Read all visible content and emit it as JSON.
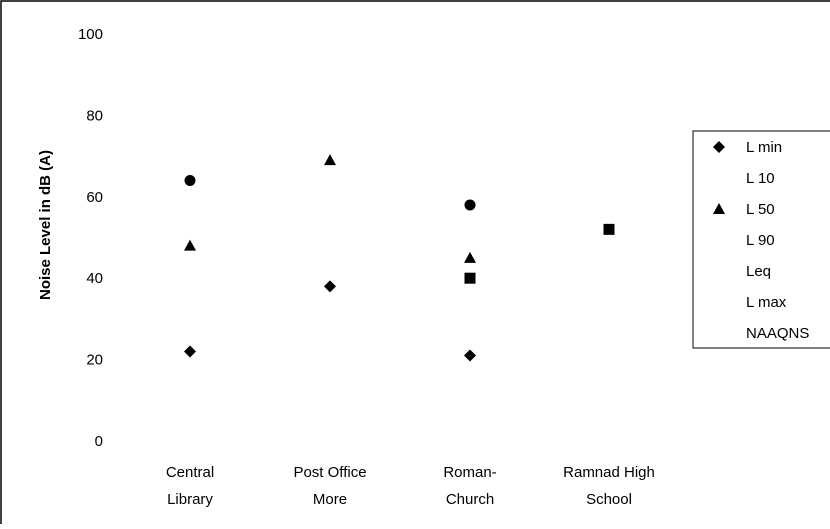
{
  "chart_data": {
    "type": "scatter",
    "title": "",
    "xlabel": "",
    "ylabel": "Noise Level in dB (A)",
    "ylim": [
      0,
      100
    ],
    "yticks": [
      0,
      20,
      40,
      60,
      80,
      100
    ],
    "categories": [
      [
        "Central",
        "Library"
      ],
      [
        "Post Office",
        "More"
      ],
      [
        "Roman-",
        "Church"
      ],
      [
        "Ramnad  High",
        "School"
      ]
    ],
    "grid": false,
    "legend_position": "right",
    "series": [
      {
        "name": "L min",
        "marker": "diamond",
        "values": [
          22,
          38,
          21,
          null
        ]
      },
      {
        "name": "L 10",
        "marker": "none",
        "values": [
          null,
          null,
          null,
          null
        ]
      },
      {
        "name": "L 50",
        "marker": "triangle",
        "values": [
          48,
          69,
          45,
          null
        ]
      },
      {
        "name": "L 90",
        "marker": "none",
        "values": [
          null,
          null,
          null,
          null
        ]
      },
      {
        "name": "Leq",
        "marker": "none",
        "values": [
          null,
          null,
          null,
          null
        ]
      },
      {
        "name": "L max",
        "marker": "none",
        "values": [
          null,
          null,
          null,
          null
        ]
      },
      {
        "name": "NAAQNS",
        "marker": "none",
        "values": [
          null,
          null,
          null,
          null
        ]
      },
      {
        "name": "",
        "marker": "circle",
        "values": [
          64,
          null,
          58,
          null
        ]
      },
      {
        "name": "",
        "marker": "square",
        "values": [
          null,
          null,
          40,
          52
        ]
      }
    ],
    "colors": {
      "markers": "#000000",
      "frame": "#000000",
      "background": "#ffffff"
    }
  }
}
